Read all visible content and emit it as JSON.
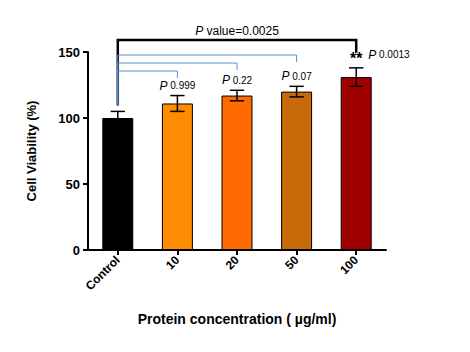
{
  "chart_data": {
    "type": "bar",
    "x_label": "Protein concentration ( µg/ml)",
    "y_label": "Cell Viability (%)",
    "categories": [
      "Control",
      "10",
      "20",
      "50",
      "100"
    ],
    "values": [
      100,
      111,
      117,
      120,
      131
    ],
    "errors": [
      5,
      6,
      4,
      4,
      7
    ],
    "colors": [
      "#000000",
      "#ff8c00",
      "#ff6a00",
      "#c8690a",
      "#a00000"
    ],
    "ylim": [
      0,
      150
    ],
    "yticks": [
      0,
      50,
      100,
      150
    ],
    "grid": false,
    "annotations": [
      {
        "text": "P value=0.0025",
        "from": "Control",
        "to": "100",
        "color": "#000000"
      },
      {
        "text": "P 0.999",
        "from": "Control",
        "to": "10",
        "color": "#5b8fd6"
      },
      {
        "text": "P 0.22",
        "from": "Control",
        "to": "20",
        "color": "#5b8fd6"
      },
      {
        "text": "P 0.07",
        "from": "Control",
        "to": "50",
        "color": "#5b8fd6"
      }
    ],
    "significance": {
      "category": "100",
      "text": "**",
      "note": "P 0.0013"
    }
  }
}
